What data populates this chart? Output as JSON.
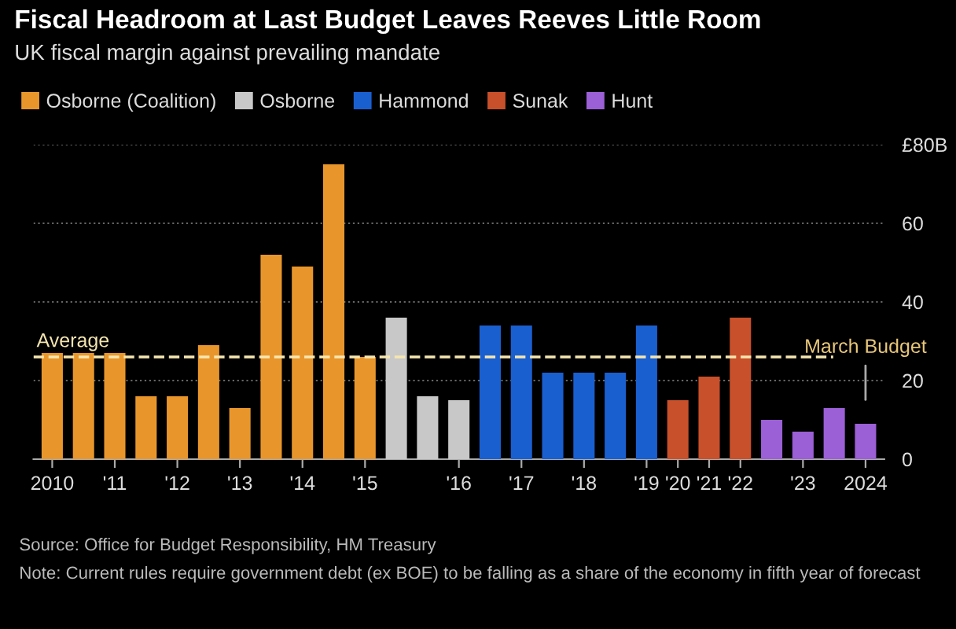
{
  "chart_data": {
    "type": "bar",
    "title": "Fiscal Headroom at Last Budget Leaves Reeves Little Room",
    "subtitle": "UK fiscal margin against prevailing mandate",
    "categories": [
      "2010",
      null,
      "'11",
      null,
      "'12",
      null,
      "'13",
      null,
      "'14",
      null,
      "'15",
      null,
      null,
      "'16",
      null,
      "'17",
      null,
      "'18",
      null,
      "'19",
      "'20",
      "'21",
      "'22",
      null,
      "'23",
      null,
      "2024"
    ],
    "series": [
      {
        "name": "Osborne (Coalition)",
        "color": "#e8962b",
        "values": [
          27,
          27,
          27,
          16,
          16,
          29,
          13,
          52,
          49,
          75,
          26,
          null,
          null,
          null,
          null,
          null,
          null,
          null,
          null,
          null,
          null,
          null,
          null,
          null,
          null,
          null,
          null
        ]
      },
      {
        "name": "Osborne",
        "color": "#c8c8c8",
        "values": [
          null,
          null,
          null,
          null,
          null,
          null,
          null,
          null,
          null,
          null,
          null,
          36,
          16,
          15,
          null,
          null,
          null,
          null,
          null,
          null,
          null,
          null,
          null,
          null,
          null,
          null,
          null
        ]
      },
      {
        "name": "Hammond",
        "color": "#1a5fd0",
        "values": [
          null,
          null,
          null,
          null,
          null,
          null,
          null,
          null,
          null,
          null,
          null,
          null,
          null,
          null,
          34,
          34,
          22,
          22,
          22,
          34,
          null,
          null,
          null,
          null,
          null,
          null,
          null
        ]
      },
      {
        "name": "Sunak",
        "color": "#c8502a",
        "values": [
          null,
          null,
          null,
          null,
          null,
          null,
          null,
          null,
          null,
          null,
          null,
          null,
          null,
          null,
          null,
          null,
          null,
          null,
          null,
          null,
          15,
          21,
          36,
          null,
          null,
          null,
          null
        ]
      },
      {
        "name": "Hunt",
        "color": "#9b5fd6",
        "values": [
          null,
          null,
          null,
          null,
          null,
          null,
          null,
          null,
          null,
          null,
          null,
          null,
          null,
          null,
          null,
          null,
          null,
          null,
          null,
          null,
          null,
          null,
          null,
          10,
          7,
          13,
          9
        ]
      }
    ],
    "ylim": [
      0,
      80
    ],
    "yticks": [
      0,
      20,
      40,
      60,
      {
        "value": 80,
        "label": "£80B"
      }
    ],
    "grid": "y",
    "legend": "top",
    "ref_lines": [
      {
        "axis": "y",
        "value": 26,
        "label": "Average",
        "color": "#f5e6b0",
        "line_style": "dashed"
      }
    ],
    "annotations": [
      "March Budget",
      "Source: Office for Budget Responsibility, HM Treasury",
      "Note: Current rules require government debt (ex BOE) to be falling as a share of the economy in fifth year of forecast"
    ]
  }
}
